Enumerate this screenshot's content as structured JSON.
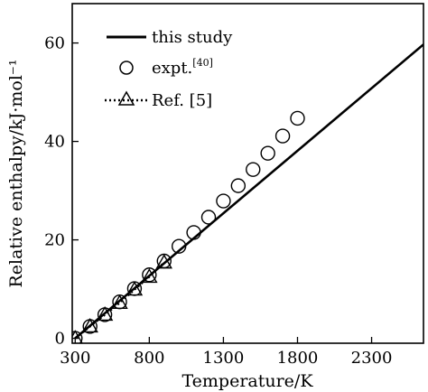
{
  "chart_data": {
    "type": "line",
    "title": "",
    "xlabel": "Temperature/K",
    "ylabel": "Relative enthalpy/kJ·mol⁻¹",
    "xlim": [
      280,
      2650
    ],
    "ylim": [
      -1,
      68
    ],
    "xticks": [
      300,
      800,
      1300,
      1800,
      2300
    ],
    "yticks": [
      0,
      20,
      40,
      60
    ],
    "grid": false,
    "legend_position": "top-left",
    "series": [
      {
        "name": "this study",
        "style": "solid-line",
        "x": [
          300,
          2650
        ],
        "y": [
          0,
          59.7
        ]
      },
      {
        "name": "expt.",
        "name_sup": "[40]",
        "style": "open-circle",
        "x": [
          300,
          400,
          500,
          600,
          700,
          800,
          900,
          1000,
          1100,
          1200,
          1300,
          1400,
          1500,
          1600,
          1700,
          1800
        ],
        "y": [
          0,
          2.4,
          4.8,
          7.4,
          10.1,
          12.9,
          15.7,
          18.7,
          21.5,
          24.6,
          27.9,
          31.0,
          34.3,
          37.6,
          41.1,
          44.7
        ]
      },
      {
        "name": "Ref. [5]",
        "style": "dotted-triangle",
        "x": [
          300,
          400,
          500,
          600,
          700,
          800,
          900
        ],
        "y": [
          0,
          2.4,
          4.8,
          7.2,
          9.9,
          12.5,
          15.4
        ]
      }
    ]
  }
}
